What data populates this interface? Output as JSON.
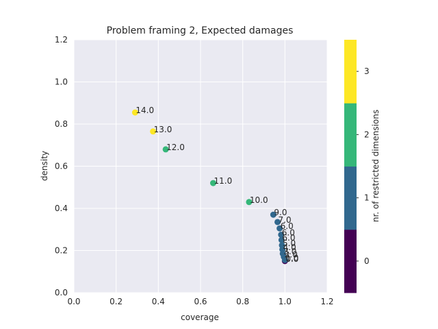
{
  "chart_data": {
    "type": "scatter",
    "title": "Problem framing 2, Expected damages",
    "xlabel": "coverage",
    "ylabel": "density",
    "xlim": [
      0,
      1.2
    ],
    "ylim": [
      0,
      1.2
    ],
    "xticks": [
      "0.0",
      "0.2",
      "0.4",
      "0.6",
      "0.8",
      "1.0",
      "1.2"
    ],
    "yticks": [
      "0.0",
      "0.2",
      "0.4",
      "0.6",
      "0.8",
      "1.0",
      "1.2"
    ],
    "grid": true,
    "colorbar": {
      "label": "nr. of restricted dimensions",
      "ticks": [
        "0",
        "1",
        "2",
        "3"
      ],
      "colors": [
        "#440154",
        "#31688e",
        "#35b779",
        "#fde725"
      ]
    },
    "points": [
      {
        "label": "0.0",
        "x": 1.0,
        "y": 0.15,
        "dims": 0
      },
      {
        "label": "1.0",
        "x": 1.0,
        "y": 0.155,
        "dims": 1
      },
      {
        "label": "2.0",
        "x": 0.995,
        "y": 0.17,
        "dims": 1
      },
      {
        "label": "3.0",
        "x": 0.99,
        "y": 0.185,
        "dims": 1
      },
      {
        "label": "4.0",
        "x": 0.988,
        "y": 0.205,
        "dims": 1
      },
      {
        "label": "5.0",
        "x": 0.986,
        "y": 0.225,
        "dims": 1
      },
      {
        "label": "6.0",
        "x": 0.984,
        "y": 0.25,
        "dims": 1
      },
      {
        "label": "6.0",
        "x": 0.982,
        "y": 0.275,
        "dims": 1
      },
      {
        "label": "6.0",
        "x": 0.975,
        "y": 0.305,
        "dims": 1
      },
      {
        "label": "7.0",
        "x": 0.965,
        "y": 0.335,
        "dims": 1
      },
      {
        "label": "9.0",
        "x": 0.945,
        "y": 0.37,
        "dims": 1
      },
      {
        "label": "10.0",
        "x": 0.83,
        "y": 0.43,
        "dims": 2
      },
      {
        "label": "11.0",
        "x": 0.66,
        "y": 0.52,
        "dims": 2
      },
      {
        "label": "12.0",
        "x": 0.435,
        "y": 0.68,
        "dims": 2
      },
      {
        "label": "13.0",
        "x": 0.375,
        "y": 0.765,
        "dims": 3
      },
      {
        "label": "14.0",
        "x": 0.29,
        "y": 0.855,
        "dims": 3
      }
    ]
  }
}
